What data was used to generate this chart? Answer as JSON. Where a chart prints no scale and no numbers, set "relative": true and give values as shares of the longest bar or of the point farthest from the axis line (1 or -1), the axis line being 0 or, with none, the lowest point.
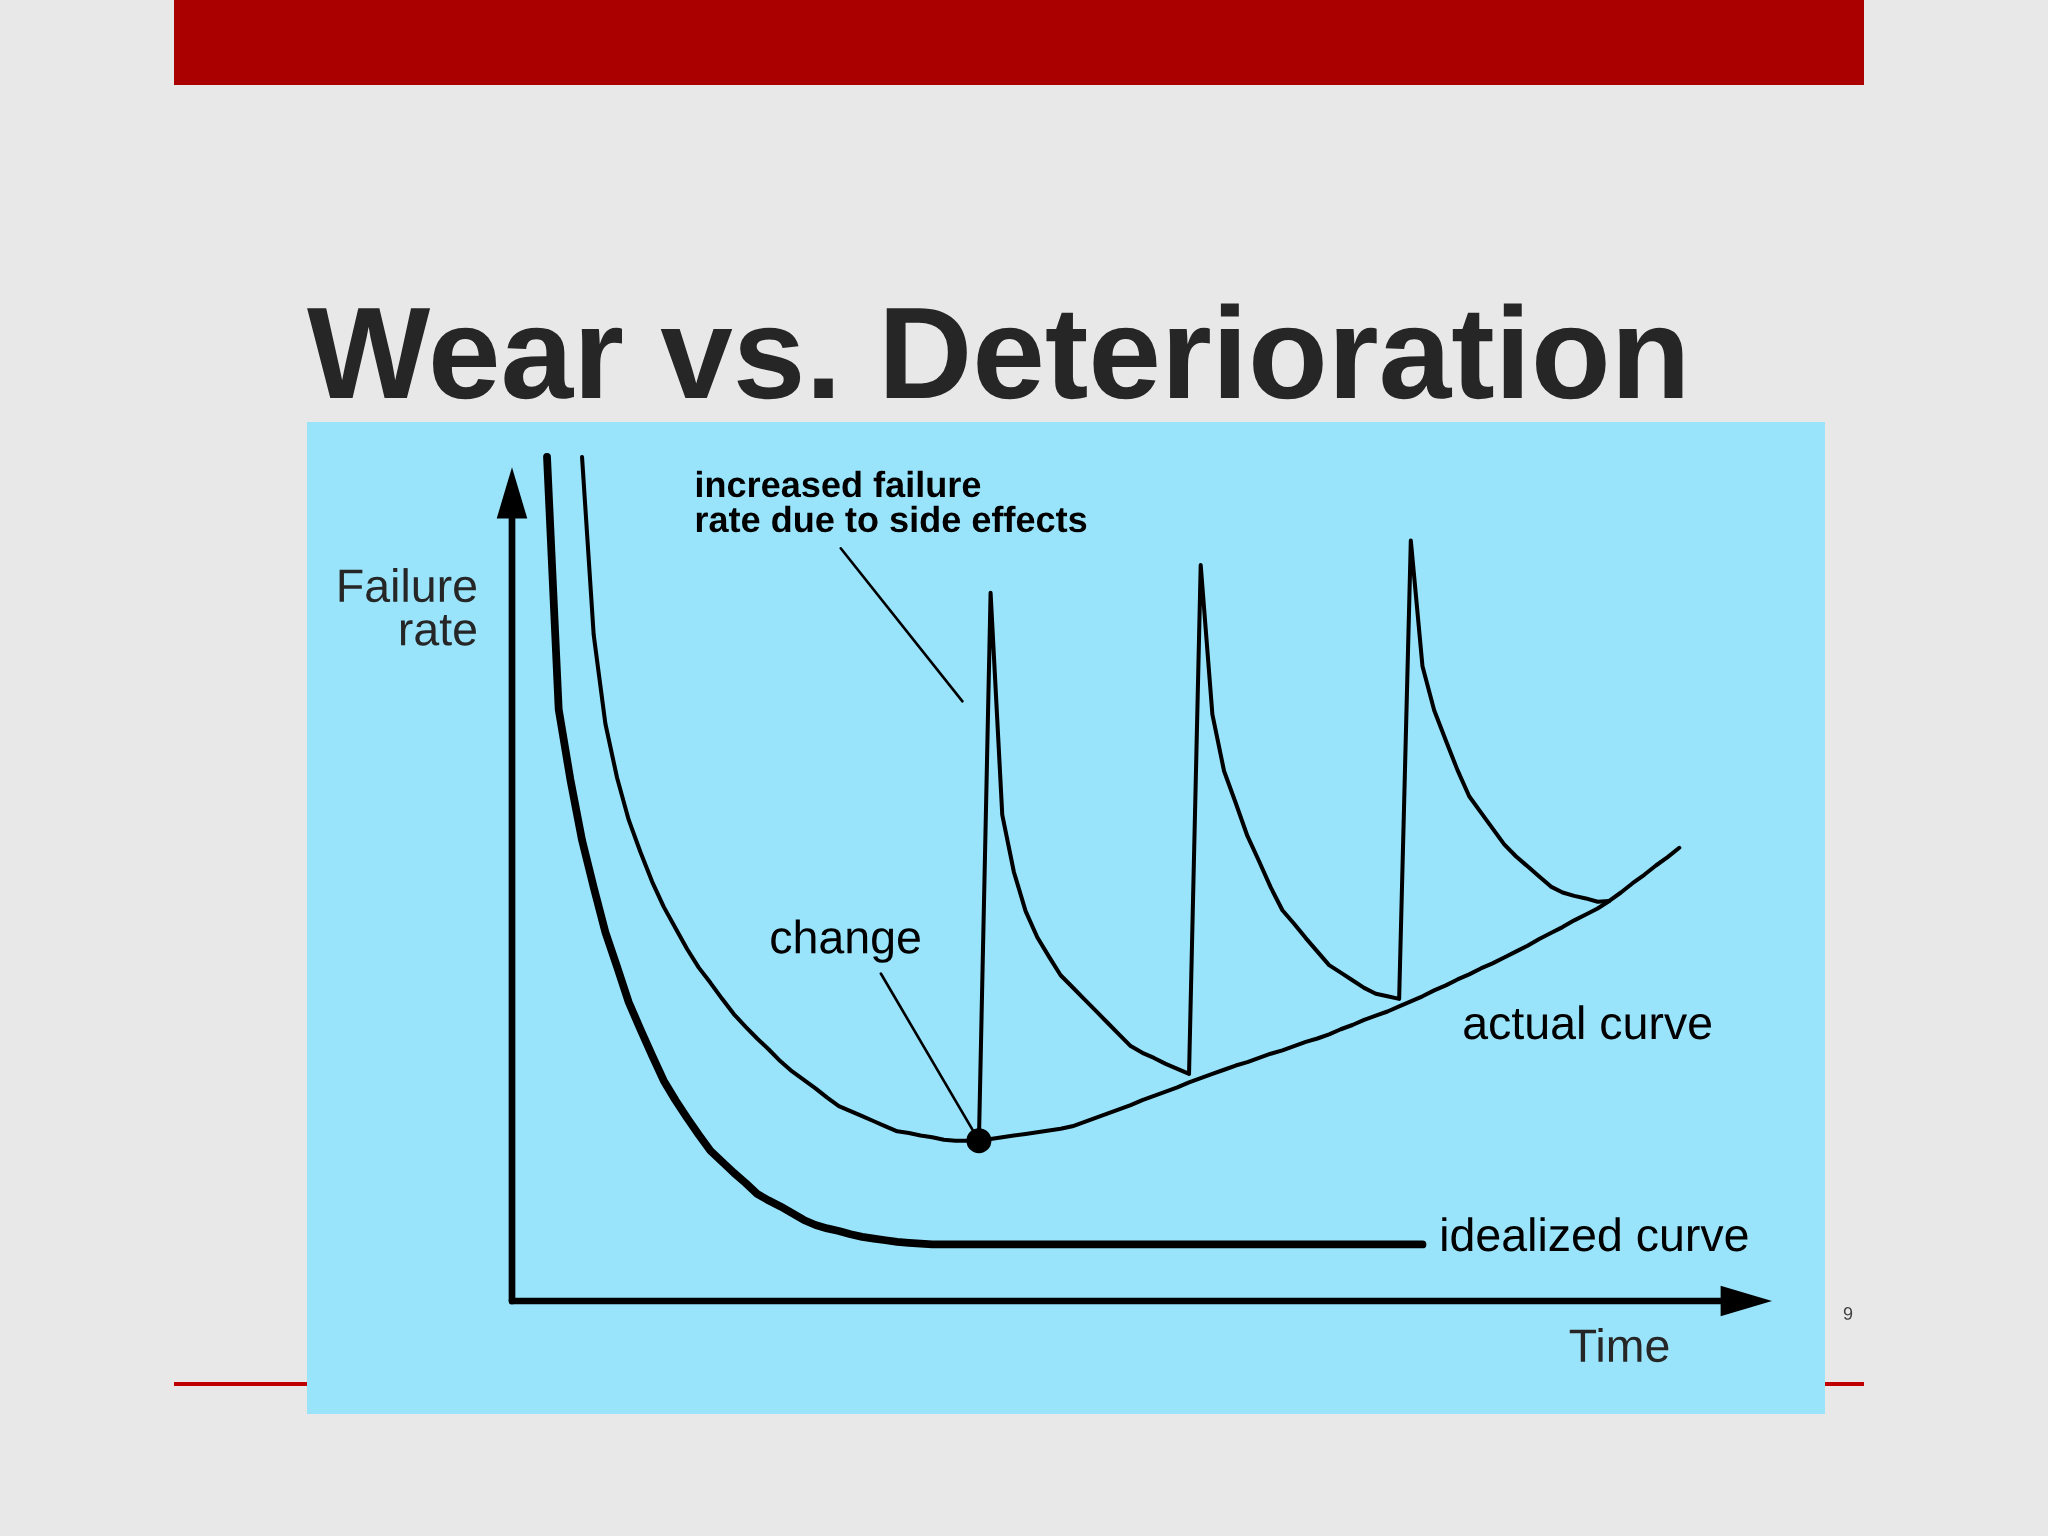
{
  "chart_data": {
    "type": "line",
    "title": "Wear vs. Deterioration",
    "ylabel": "Failure\nrate",
    "xlabel": "Time",
    "relative": true,
    "categories": [
      null,
      null,
      null,
      null,
      null,
      null,
      null,
      null,
      null,
      null,
      null,
      null,
      null,
      null,
      null,
      null,
      null,
      null,
      null,
      null,
      null,
      null,
      null,
      null,
      null,
      null,
      null,
      null,
      null,
      null,
      null,
      null,
      null,
      null,
      null,
      null,
      null,
      null,
      null,
      null,
      null,
      null,
      null,
      null,
      null,
      null,
      null,
      null,
      null,
      null,
      null,
      null,
      null,
      null,
      null,
      null,
      null,
      null,
      null,
      null,
      null,
      null,
      null,
      null,
      null,
      null,
      null,
      null,
      null,
      null,
      null,
      null,
      null,
      null,
      null,
      null,
      null,
      null,
      null,
      null,
      null,
      null,
      null,
      null,
      null,
      null,
      null,
      null,
      null,
      null,
      null,
      null,
      null,
      null,
      null,
      null,
      null,
      null,
      null,
      null,
      null
    ],
    "series": [
      {
        "name": "idealized curve",
        "color": "#000000",
        "values": [
          null,
          null,
          null,
          1.0,
          0.701,
          0.618,
          0.546,
          0.49,
          0.437,
          0.396,
          0.354,
          0.322,
          0.291,
          0.261,
          0.238,
          0.217,
          0.197,
          0.178,
          0.165,
          0.152,
          0.14,
          0.127,
          0.119,
          0.112,
          0.104,
          0.096,
          0.09,
          0.086,
          0.083,
          0.079,
          0.076,
          0.074,
          0.072,
          0.07,
          0.069,
          0.068,
          0.067,
          0.067,
          0.067,
          0.067,
          0.067,
          0.067,
          0.067,
          0.067,
          0.067,
          0.067,
          0.067,
          0.067,
          0.067,
          0.067,
          0.067,
          0.067,
          0.067,
          0.067,
          0.067,
          0.067,
          0.067,
          0.067,
          0.067,
          0.067,
          0.067,
          0.067,
          0.067,
          0.067,
          0.067,
          0.067,
          0.067,
          0.067,
          0.067,
          0.067,
          0.067,
          0.067,
          0.067,
          0.067,
          0.067,
          0.067,
          0.067,
          0.067,
          0.067,
          null,
          null,
          null,
          null,
          null,
          null,
          null,
          null,
          null,
          null,
          null,
          null,
          null,
          null,
          null,
          null,
          null,
          null,
          null,
          null,
          null,
          null
        ]
      },
      {
        "name": "actual curve",
        "color": "#000000",
        "values": [
          null,
          null,
          null,
          null,
          null,
          null,
          1.0,
          0.789,
          0.684,
          0.62,
          0.57,
          0.532,
          0.497,
          0.467,
          0.442,
          0.417,
          0.395,
          0.377,
          0.358,
          0.34,
          0.325,
          0.311,
          0.298,
          0.284,
          0.272,
          0.262,
          0.252,
          0.241,
          0.231,
          0.225,
          0.219,
          0.213,
          0.207,
          0.201,
          0.199,
          0.196,
          0.194,
          0.191,
          0.19,
          0.19,
          0.19,
          0.192,
          0.194,
          0.196,
          0.198,
          0.2,
          0.202,
          0.204,
          0.207,
          0.212,
          0.217,
          0.222,
          0.227,
          0.232,
          0.238,
          0.243,
          0.248,
          0.253,
          0.259,
          0.264,
          0.269,
          0.274,
          0.279,
          0.283,
          0.288,
          0.293,
          0.297,
          0.302,
          0.307,
          0.311,
          0.316,
          0.322,
          0.327,
          0.333,
          0.338,
          0.343,
          0.349,
          0.355,
          0.361,
          0.368,
          0.374,
          0.381,
          0.387,
          0.394,
          0.4,
          0.407,
          0.414,
          0.421,
          0.429,
          0.436,
          0.443,
          0.451,
          0.458,
          0.465,
          0.474,
          0.484,
          0.495,
          0.505,
          0.516,
          0.526,
          0.537
        ]
      },
      {
        "color": "#000000",
        "values": [
          null,
          null,
          null,
          null,
          null,
          null,
          null,
          null,
          null,
          null,
          null,
          null,
          null,
          null,
          null,
          null,
          null,
          null,
          null,
          null,
          null,
          null,
          null,
          null,
          null,
          null,
          null,
          null,
          null,
          null,
          null,
          null,
          null,
          null,
          null,
          null,
          null,
          null,
          null,
          null,
          0.19,
          0.839,
          0.576,
          0.508,
          0.462,
          0.431,
          0.408,
          0.386,
          0.372,
          0.358,
          0.344,
          0.33,
          0.316,
          0.302,
          0.294,
          0.288,
          0.281,
          0.275,
          0.269,
          0.872,
          0.695,
          0.628,
          0.59,
          0.551,
          0.521,
          0.49,
          0.463,
          0.447,
          0.43,
          0.414,
          0.398,
          0.389,
          0.38,
          0.371,
          0.364,
          0.361,
          0.358,
          0.901,
          0.752,
          0.7,
          0.664,
          0.629,
          0.598,
          0.579,
          0.56,
          0.541,
          0.527,
          0.515,
          0.503,
          0.491,
          0.484,
          0.48,
          0.477,
          0.473,
          0.474,
          null,
          null,
          null,
          null,
          null,
          null
        ]
      }
    ],
    "annotations": [
      "increased failure\nrate due to side effects",
      "change",
      "9"
    ]
  }
}
